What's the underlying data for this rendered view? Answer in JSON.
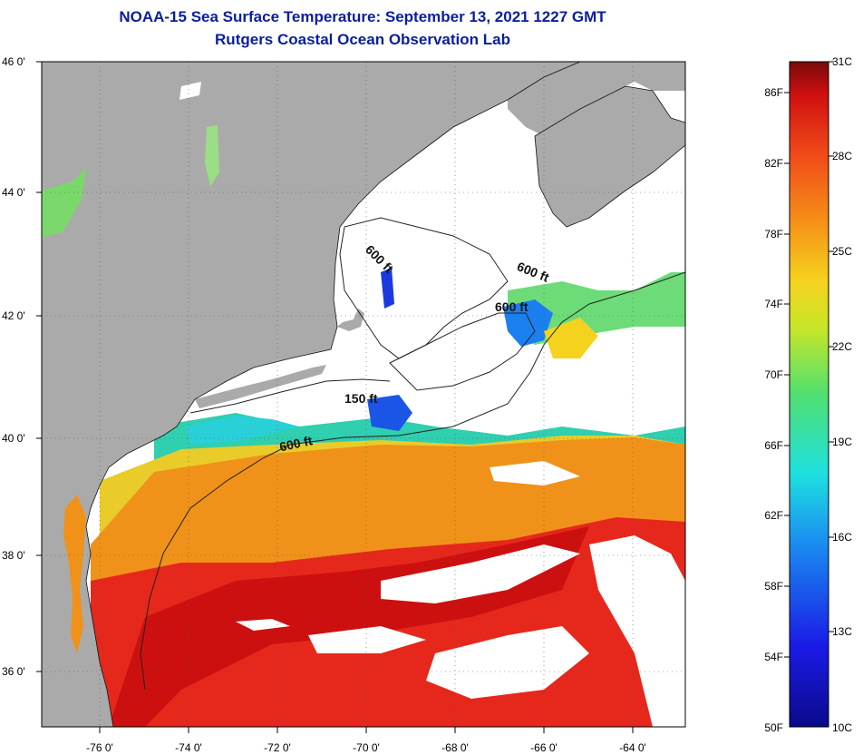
{
  "header": {
    "title": "NOAA-15 Sea Surface Temperature:  September 13, 2021 1227 GMT",
    "subtitle": "Rutgers Coastal Ocean Observation Lab"
  },
  "map": {
    "lon_ticks": [
      "-76 0'",
      "-74 0'",
      "-72 0'",
      "-70 0'",
      "-68 0'",
      "-66 0'",
      "-64 0'"
    ],
    "lat_ticks": [
      "46 0'",
      "44 0'",
      "42 0'",
      "40 0'",
      "38 0'",
      "36 0'"
    ],
    "contour_labels": [
      "600 ft",
      "600 ft",
      "600 ft",
      "150 ft",
      "600 ft"
    ],
    "colors": {
      "land": "#aaaaaa",
      "cloud": "#ffffff",
      "warm": "#e8251c",
      "hot": "#cc1010",
      "orange": "#f08c18",
      "yellow": "#f5d21e",
      "green": "#5ed26a",
      "cyan": "#25c8e0",
      "blue": "#1a55e6"
    }
  },
  "colorbar": {
    "f_labels": [
      "86F",
      "82F",
      "78F",
      "74F",
      "70F",
      "66F",
      "62F",
      "58F",
      "54F",
      "50F"
    ],
    "c_labels": [
      "31C",
      "28C",
      "25C",
      "22C",
      "19C",
      "16C",
      "13C",
      "10C"
    ]
  }
}
